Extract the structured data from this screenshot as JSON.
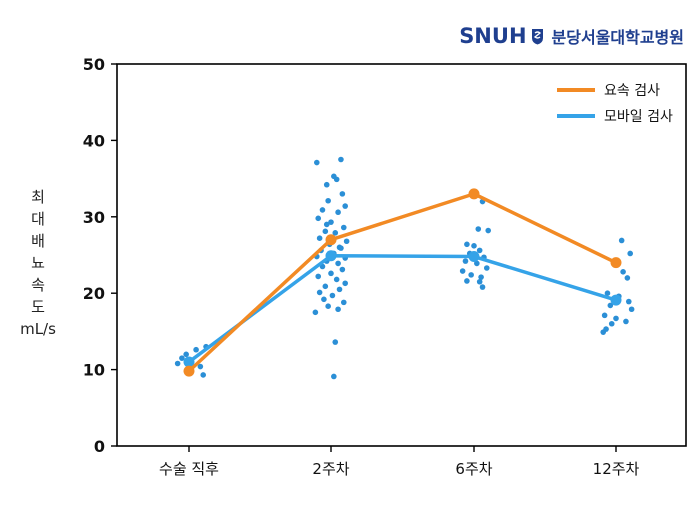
{
  "branding": {
    "logo_text": "SNUH",
    "hospital_name": "분당서울대학교병원",
    "brand_color": "#1f3f8f"
  },
  "chart_data": {
    "type": "line",
    "categories": [
      "수술 직후",
      "2주차",
      "6주차",
      "12주차"
    ],
    "ylabel_chars": [
      "최",
      "대",
      "배",
      "뇨",
      "속",
      "도"
    ],
    "ylabel_unit": "mL/s",
    "ylim": [
      0,
      50
    ],
    "yticks": [
      0,
      10,
      20,
      30,
      40,
      50
    ],
    "grid": false,
    "legend_position": "top-right",
    "series": [
      {
        "name": "요속 검사",
        "color": "#f28a24",
        "values": [
          9.8,
          27.0,
          33.0,
          24.0
        ]
      },
      {
        "name": "모바일 검사",
        "color": "#35a3e8",
        "values": [
          11.0,
          24.9,
          24.8,
          19.1
        ]
      }
    ],
    "scatter": {
      "series": "모바일 검사",
      "color": "#2b8fd6",
      "points": [
        {
          "cat": 0,
          "dx": -0.05,
          "y": 11.5
        },
        {
          "cat": 0,
          "dx": 0.05,
          "y": 12.6
        },
        {
          "cat": 0,
          "dx": 0.08,
          "y": 10.4
        },
        {
          "cat": 0,
          "dx": 0.1,
          "y": 9.3
        },
        {
          "cat": 0,
          "dx": -0.02,
          "y": 12.0
        },
        {
          "cat": 0,
          "dx": 0.12,
          "y": 13.0
        },
        {
          "cat": 0,
          "dx": -0.08,
          "y": 10.8
        },
        {
          "cat": 1,
          "dx": -0.1,
          "y": 37.1
        },
        {
          "cat": 1,
          "dx": 0.07,
          "y": 37.5
        },
        {
          "cat": 1,
          "dx": 0.02,
          "y": 35.3
        },
        {
          "cat": 1,
          "dx": -0.03,
          "y": 34.2
        },
        {
          "cat": 1,
          "dx": 0.04,
          "y": 34.9
        },
        {
          "cat": 1,
          "dx": 0.08,
          "y": 33.0
        },
        {
          "cat": 1,
          "dx": -0.02,
          "y": 32.1
        },
        {
          "cat": 1,
          "dx": 0.1,
          "y": 31.4
        },
        {
          "cat": 1,
          "dx": -0.06,
          "y": 30.9
        },
        {
          "cat": 1,
          "dx": 0.05,
          "y": 30.6
        },
        {
          "cat": 1,
          "dx": -0.09,
          "y": 29.8
        },
        {
          "cat": 1,
          "dx": 0.0,
          "y": 29.3
        },
        {
          "cat": 1,
          "dx": 0.09,
          "y": 28.6
        },
        {
          "cat": 1,
          "dx": -0.04,
          "y": 28.1
        },
        {
          "cat": 1,
          "dx": 0.03,
          "y": 27.9
        },
        {
          "cat": 1,
          "dx": -0.08,
          "y": 27.2
        },
        {
          "cat": 1,
          "dx": 0.11,
          "y": 26.8
        },
        {
          "cat": 1,
          "dx": -0.01,
          "y": 26.4
        },
        {
          "cat": 1,
          "dx": 0.06,
          "y": 26.0
        },
        {
          "cat": 1,
          "dx": -0.07,
          "y": 25.6
        },
        {
          "cat": 1,
          "dx": 0.02,
          "y": 25.2
        },
        {
          "cat": 1,
          "dx": -0.1,
          "y": 24.8
        },
        {
          "cat": 1,
          "dx": 0.1,
          "y": 24.6
        },
        {
          "cat": 1,
          "dx": -0.03,
          "y": 24.2
        },
        {
          "cat": 1,
          "dx": 0.05,
          "y": 23.9
        },
        {
          "cat": 1,
          "dx": -0.06,
          "y": 23.5
        },
        {
          "cat": 1,
          "dx": 0.08,
          "y": 23.1
        },
        {
          "cat": 1,
          "dx": 0.0,
          "y": 22.6
        },
        {
          "cat": 1,
          "dx": -0.09,
          "y": 22.2
        },
        {
          "cat": 1,
          "dx": 0.04,
          "y": 21.8
        },
        {
          "cat": 1,
          "dx": 0.1,
          "y": 21.3
        },
        {
          "cat": 1,
          "dx": -0.04,
          "y": 20.9
        },
        {
          "cat": 1,
          "dx": 0.06,
          "y": 20.5
        },
        {
          "cat": 1,
          "dx": -0.08,
          "y": 20.1
        },
        {
          "cat": 1,
          "dx": 0.01,
          "y": 19.7
        },
        {
          "cat": 1,
          "dx": -0.05,
          "y": 19.2
        },
        {
          "cat": 1,
          "dx": 0.09,
          "y": 18.8
        },
        {
          "cat": 1,
          "dx": -0.02,
          "y": 18.3
        },
        {
          "cat": 1,
          "dx": 0.05,
          "y": 17.9
        },
        {
          "cat": 1,
          "dx": -0.11,
          "y": 17.5
        },
        {
          "cat": 1,
          "dx": 0.03,
          "y": 13.6
        },
        {
          "cat": 1,
          "dx": 0.02,
          "y": 9.1
        },
        {
          "cat": 1,
          "dx": -0.03,
          "y": 29.0
        },
        {
          "cat": 1,
          "dx": 0.07,
          "y": 25.9
        },
        {
          "cat": 2,
          "dx": 0.06,
          "y": 32.0
        },
        {
          "cat": 2,
          "dx": 0.03,
          "y": 28.4
        },
        {
          "cat": 2,
          "dx": 0.1,
          "y": 28.2
        },
        {
          "cat": 2,
          "dx": -0.05,
          "y": 26.4
        },
        {
          "cat": 2,
          "dx": 0.0,
          "y": 26.2
        },
        {
          "cat": 2,
          "dx": 0.04,
          "y": 25.6
        },
        {
          "cat": 2,
          "dx": -0.03,
          "y": 25.2
        },
        {
          "cat": 2,
          "dx": 0.07,
          "y": 24.7
        },
        {
          "cat": 2,
          "dx": -0.06,
          "y": 24.2
        },
        {
          "cat": 2,
          "dx": 0.02,
          "y": 23.9
        },
        {
          "cat": 2,
          "dx": 0.09,
          "y": 23.3
        },
        {
          "cat": 2,
          "dx": -0.08,
          "y": 22.9
        },
        {
          "cat": 2,
          "dx": -0.02,
          "y": 22.4
        },
        {
          "cat": 2,
          "dx": 0.05,
          "y": 22.1
        },
        {
          "cat": 2,
          "dx": -0.05,
          "y": 21.6
        },
        {
          "cat": 2,
          "dx": 0.04,
          "y": 21.5
        },
        {
          "cat": 2,
          "dx": 0.06,
          "y": 20.8
        },
        {
          "cat": 3,
          "dx": 0.04,
          "y": 26.9
        },
        {
          "cat": 3,
          "dx": 0.1,
          "y": 25.2
        },
        {
          "cat": 3,
          "dx": 0.05,
          "y": 22.8
        },
        {
          "cat": 3,
          "dx": 0.08,
          "y": 22.0
        },
        {
          "cat": 3,
          "dx": -0.06,
          "y": 20.0
        },
        {
          "cat": 3,
          "dx": 0.02,
          "y": 19.6
        },
        {
          "cat": 3,
          "dx": 0.09,
          "y": 18.9
        },
        {
          "cat": 3,
          "dx": -0.04,
          "y": 18.4
        },
        {
          "cat": 3,
          "dx": 0.11,
          "y": 17.9
        },
        {
          "cat": 3,
          "dx": -0.08,
          "y": 17.1
        },
        {
          "cat": 3,
          "dx": 0.0,
          "y": 16.7
        },
        {
          "cat": 3,
          "dx": 0.07,
          "y": 16.3
        },
        {
          "cat": 3,
          "dx": -0.03,
          "y": 16.0
        },
        {
          "cat": 3,
          "dx": -0.07,
          "y": 15.3
        },
        {
          "cat": 3,
          "dx": -0.09,
          "y": 14.9
        }
      ]
    }
  }
}
